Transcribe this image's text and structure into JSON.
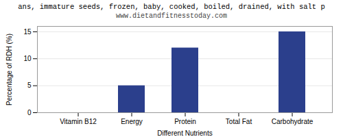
{
  "chart_data": {
    "type": "bar",
    "title": "ans, immature seeds, frozen, baby, cooked, boiled, drained, with salt p",
    "subtitle": "www.dietandfitnesstoday.com",
    "categories": [
      "Vitamin B12",
      "Energy",
      "Protein",
      "Total Fat",
      "Carbohydrate"
    ],
    "values": [
      0,
      5,
      12,
      0,
      15
    ],
    "color": "#2b3f8c",
    "xlabel": "Different Nutrients",
    "ylabel": "Percentage of RDH (%)",
    "ylim": [
      0,
      16
    ],
    "yticks": [
      0,
      5,
      10,
      15
    ],
    "grid": true
  }
}
